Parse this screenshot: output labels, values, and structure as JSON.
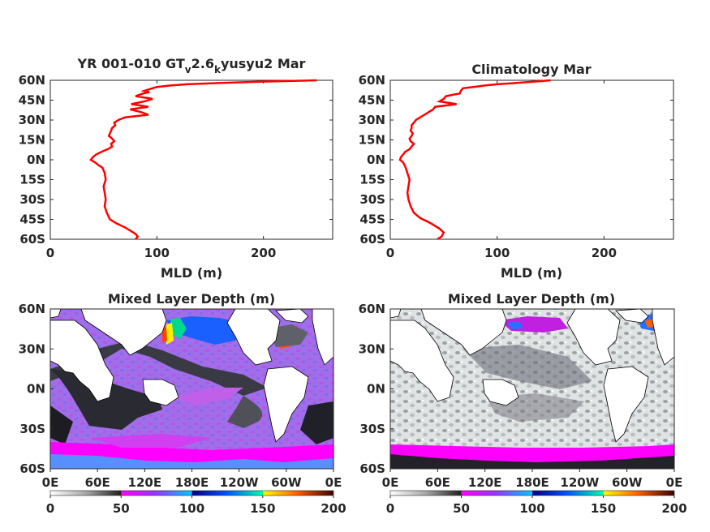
{
  "chart_data": [
    {
      "type": "line",
      "title": {
        "main": "YR 001-010 GT",
        "sub1": "v",
        "mid": "2.6",
        "sub2": "k",
        "end": "yusyu2 Mar"
      },
      "xlabel": "MLD (m)",
      "xlim": [
        0,
        265
      ],
      "xticks": [
        "0",
        "100",
        "200"
      ],
      "xtick_values": [
        0,
        100,
        200
      ],
      "ylim": [
        -60,
        60
      ],
      "yticks": [
        "60N",
        "45N",
        "30N",
        "15N",
        "0N",
        "15S",
        "30S",
        "45S",
        "60S"
      ],
      "ytick_values": [
        60,
        45,
        30,
        15,
        0,
        -15,
        -30,
        -45,
        -60
      ],
      "color": "#ff0000",
      "series": [
        {
          "y": [
            60,
            59,
            58,
            57,
            56,
            55,
            54,
            53,
            52,
            51,
            50,
            48,
            46,
            44,
            42,
            40,
            38,
            36,
            34,
            32,
            30,
            28,
            26,
            24,
            22,
            20,
            18,
            16,
            14,
            12,
            10,
            8,
            6,
            4,
            2,
            0,
            -2,
            -4,
            -6,
            -8,
            -10,
            -15,
            -20,
            -25,
            -30,
            -35,
            -40,
            -45,
            -48,
            -51,
            -54,
            -56,
            -58,
            -60
          ],
          "x": [
            250,
            200,
            160,
            128,
            112,
            100,
            96,
            92,
            88,
            93,
            87,
            80,
            96,
            88,
            76,
            92,
            75,
            85,
            92,
            70,
            64,
            60,
            61,
            58,
            57,
            56,
            55,
            58,
            60,
            57,
            58,
            54,
            48,
            43,
            40,
            38,
            42,
            45,
            49,
            50,
            51,
            52,
            50,
            51,
            52,
            51,
            53,
            56,
            62,
            70,
            76,
            80,
            82,
            80
          ]
        }
      ]
    },
    {
      "type": "line",
      "title": "Climatology Mar",
      "xlabel": "MLD (m)",
      "xlim": [
        0,
        265
      ],
      "xticks": [
        "0",
        "100",
        "200"
      ],
      "xtick_values": [
        0,
        100,
        200
      ],
      "ylim": [
        -60,
        60
      ],
      "yticks": [
        "60N",
        "45N",
        "30N",
        "15N",
        "0N",
        "15S",
        "30S",
        "45S",
        "60S"
      ],
      "ytick_values": [
        60,
        45,
        30,
        15,
        0,
        -15,
        -30,
        -45,
        -60
      ],
      "color": "#ff0000",
      "series": [
        {
          "y": [
            60,
            59,
            58,
            57,
            56,
            55,
            54,
            52,
            50,
            49,
            48,
            46,
            44,
            42,
            40,
            38,
            36,
            34,
            32,
            30,
            28,
            26,
            24,
            22,
            20,
            18,
            16,
            14,
            12,
            10,
            8,
            6,
            4,
            2,
            0,
            -2,
            -5,
            -10,
            -15,
            -20,
            -25,
            -30,
            -35,
            -40,
            -44,
            -48,
            -52,
            -55,
            -58,
            -60
          ],
          "x": [
            150,
            135,
            118,
            100,
            88,
            78,
            68,
            66,
            65,
            58,
            52,
            50,
            46,
            62,
            42,
            40,
            36,
            32,
            28,
            24,
            22,
            20,
            20,
            19,
            21,
            20,
            18,
            19,
            22,
            20,
            18,
            14,
            12,
            10,
            9,
            12,
            14,
            16,
            18,
            17,
            16,
            17,
            19,
            22,
            28,
            38,
            46,
            50,
            48,
            44
          ]
        }
      ]
    },
    {
      "type": "heatmap",
      "title": "Mixed Layer Depth (m)",
      "projection": "equirectangular, Pacific-centered",
      "xticks": [
        "0E",
        "60E",
        "120E",
        "180E",
        "120W",
        "60W",
        "0E"
      ],
      "yticks": [
        "60N",
        "30N",
        "0N",
        "30S",
        "60S"
      ],
      "colorbar": {
        "ticks": [
          "0",
          "50",
          "100",
          "150",
          "200"
        ],
        "range": [
          0,
          200
        ]
      },
      "field_description_colors": {
        "low": "#f0f0f0",
        "mid": "#3c3c44",
        "high_50_100": "#ff00ff",
        "100_150": "#1e90ff",
        "150_200": "#ffff00"
      }
    },
    {
      "type": "heatmap",
      "title": "Mixed Layer Depth (m)",
      "projection": "equirectangular, Pacific-centered",
      "xticks": [
        "0E",
        "60E",
        "120E",
        "180E",
        "120W",
        "60W",
        "0E"
      ],
      "yticks": [
        "60N",
        "30N",
        "0N",
        "30S",
        "60S"
      ],
      "colorbar": {
        "ticks": [
          "0",
          "50",
          "100",
          "150",
          "200"
        ],
        "range": [
          0,
          200
        ]
      }
    }
  ]
}
